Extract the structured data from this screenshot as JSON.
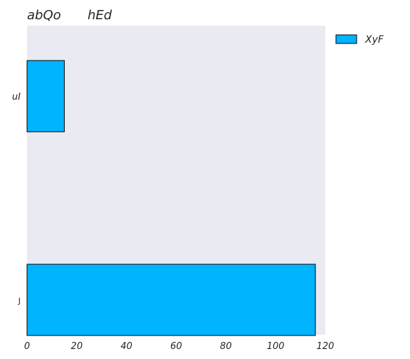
{
  "chart_data": {
    "type": "bar",
    "orientation": "horizontal",
    "title_left": "abQo",
    "title_right": "hEd",
    "categories": [
      "uI",
      "J"
    ],
    "series": [
      {
        "name": "XyF",
        "values": [
          15,
          116
        ]
      }
    ],
    "xlim": [
      0,
      120
    ],
    "xticks": [
      0,
      20,
      40,
      60,
      80,
      100,
      120
    ],
    "xlabel": "",
    "ylabel": "",
    "grid": false,
    "legend_position": "top-right",
    "colors": {
      "bar": "#00b4ff",
      "plot_background": "#eaeaf2",
      "bar_edge": "#000000",
      "text": "#262626"
    }
  }
}
